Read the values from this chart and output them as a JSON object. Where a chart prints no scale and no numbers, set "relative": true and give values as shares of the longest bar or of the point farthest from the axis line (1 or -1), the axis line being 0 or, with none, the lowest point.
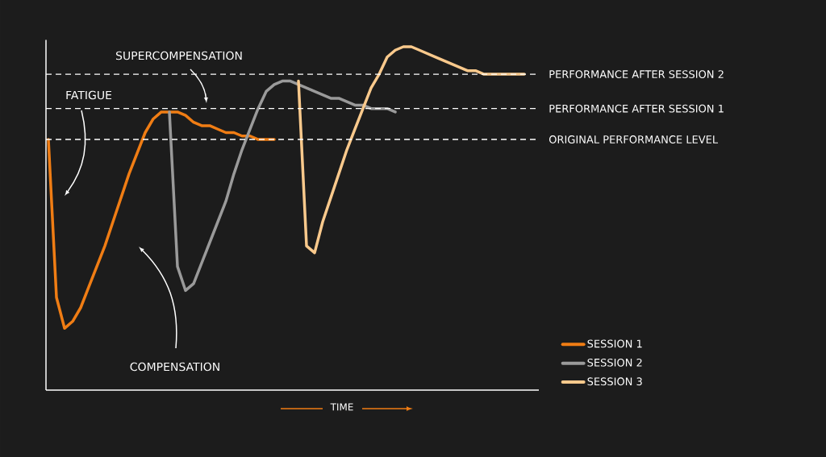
{
  "chart_data": {
    "type": "line",
    "relative": true,
    "categories": [
      null,
      null,
      null,
      null,
      null,
      null,
      null,
      null,
      null,
      null,
      null,
      null,
      null,
      null,
      null,
      null,
      null,
      null,
      null,
      null,
      null,
      null,
      null,
      null,
      null,
      null,
      null,
      null,
      null,
      null,
      null,
      null,
      null,
      null,
      null,
      null,
      null,
      null,
      null,
      null,
      null,
      null,
      null,
      null,
      null,
      null,
      null,
      null,
      null,
      null,
      null,
      null,
      null,
      null,
      null,
      null,
      null,
      null,
      null,
      null,
      null
    ],
    "series": [
      {
        "name": "SESSION 1",
        "color": "#f07d14",
        "values": [
          0.73,
          0.27,
          0.18,
          0.2,
          0.24,
          0.3,
          0.36,
          0.42,
          0.49,
          0.56,
          0.63,
          0.69,
          0.75,
          0.79,
          0.81,
          0.81,
          0.81,
          0.8,
          0.78,
          0.77,
          0.77,
          0.76,
          0.75,
          0.75,
          0.74,
          0.74,
          0.73,
          0.73,
          0.73,
          null,
          null,
          null,
          null,
          null,
          null,
          null,
          null,
          null,
          null,
          null,
          null,
          null,
          null,
          null,
          null,
          null,
          null,
          null,
          null,
          null,
          null,
          null,
          null,
          null,
          null,
          null,
          null,
          null,
          null,
          null,
          null
        ]
      },
      {
        "name": "SESSION 2",
        "color": "#9a9a9a",
        "values": [
          null,
          null,
          null,
          null,
          null,
          null,
          null,
          null,
          null,
          null,
          null,
          null,
          null,
          null,
          null,
          0.81,
          0.36,
          0.29,
          0.31,
          0.37,
          0.43,
          0.49,
          0.55,
          0.63,
          0.7,
          0.76,
          0.82,
          0.87,
          0.89,
          0.9,
          0.9,
          0.89,
          0.88,
          0.87,
          0.86,
          0.85,
          0.85,
          0.84,
          0.83,
          0.83,
          0.82,
          0.82,
          0.82,
          0.81,
          null,
          null,
          null,
          null,
          null,
          null,
          null,
          null,
          null,
          null,
          null,
          null,
          null,
          null,
          null,
          null,
          null
        ]
      },
      {
        "name": "SESSION 3",
        "color": "#f9c98c",
        "values": [
          null,
          null,
          null,
          null,
          null,
          null,
          null,
          null,
          null,
          null,
          null,
          null,
          null,
          null,
          null,
          null,
          null,
          null,
          null,
          null,
          null,
          null,
          null,
          null,
          null,
          null,
          null,
          null,
          null,
          null,
          null,
          0.9,
          0.42,
          0.4,
          0.49,
          0.56,
          0.63,
          0.7,
          0.76,
          0.82,
          0.88,
          0.92,
          0.97,
          0.99,
          1.0,
          1.0,
          0.99,
          0.98,
          0.97,
          0.96,
          0.95,
          0.94,
          0.93,
          0.93,
          0.92,
          0.92,
          0.92,
          0.92,
          0.92,
          0.92,
          null
        ]
      }
    ],
    "ref_lines": [
      {
        "axis": "y",
        "value": 0.73,
        "label": "ORIGINAL PERFORMANCE LEVEL",
        "color": "#ffffff",
        "line_style": "dashed"
      },
      {
        "axis": "y",
        "value": 0.82,
        "label": "PERFORMANCE AFTER SESSION 1",
        "color": "#ffffff",
        "line_style": "dashed"
      },
      {
        "axis": "y",
        "value": 0.92,
        "label": "PERFORMANCE AFTER SESSION 2",
        "color": "#ffffff",
        "line_style": "dashed"
      }
    ],
    "annotations": [
      "SUPERCOMPENSATION",
      "FATIGUE",
      "COMPENSATION",
      "TIME"
    ],
    "legend": "bottom right"
  }
}
